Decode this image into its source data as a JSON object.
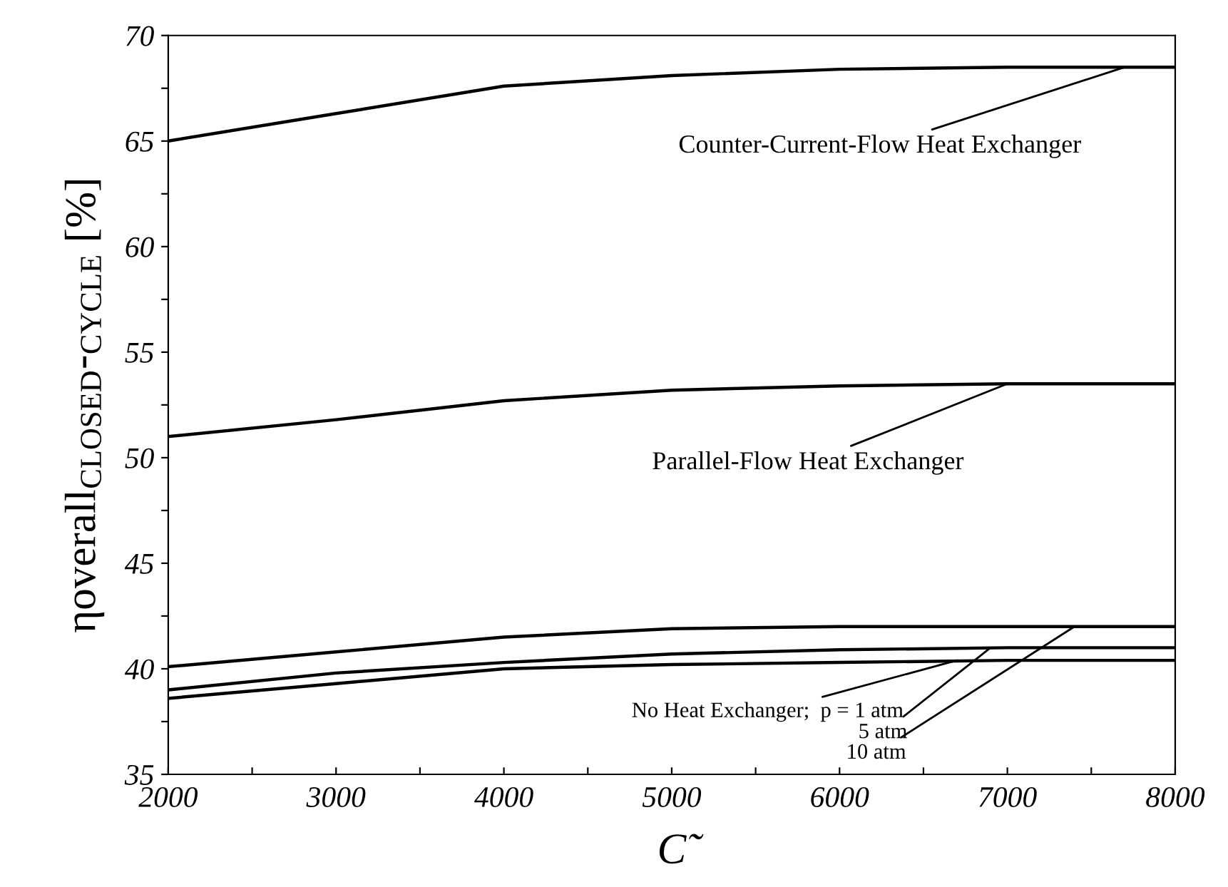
{
  "chart_data": {
    "type": "line",
    "xlabel": "C̃",
    "ylabel": "ηoverall$_{CLOSED}$-$_{CYCLE}$ [%]",
    "x": [
      2000,
      3000,
      4000,
      5000,
      6000,
      7000,
      8000
    ],
    "series": [
      {
        "color": "#000000",
        "values": [
          65.0,
          66.3,
          67.6,
          68.1,
          68.4,
          68.5,
          68.5
        ]
      },
      {
        "color": "#000000",
        "values": [
          51.0,
          51.8,
          52.7,
          53.2,
          53.4,
          53.5,
          53.5
        ]
      },
      {
        "color": "#000000",
        "values": [
          40.1,
          40.8,
          41.5,
          41.9,
          42.0,
          42.0,
          42.0
        ]
      },
      {
        "color": "#000000",
        "values": [
          39.0,
          39.8,
          40.3,
          40.7,
          40.9,
          41.0,
          41.0
        ]
      },
      {
        "color": "#000000",
        "values": [
          38.6,
          39.3,
          40.0,
          40.2,
          40.3,
          40.4,
          40.4
        ]
      }
    ],
    "annotations": [
      {
        "text": "Counter-Current-Flow Heat Exchanger",
        "x": 7700,
        "y": 68.5
      },
      {
        "text": "Parallel-Flow Heat Exchanger",
        "x": 7000,
        "y": 53.5
      },
      {
        "text": "No Heat Exchanger;  p = 1 atm",
        "x": 6700,
        "y": 40.4
      },
      {
        "text": "5 atm",
        "x": 6900,
        "y": 41.0
      },
      {
        "text": "10 atm",
        "x": 7400,
        "y": 42.0
      }
    ],
    "xlim": [
      2000,
      8000
    ],
    "ylim": [
      35,
      70
    ],
    "xticks": [
      2000,
      {
        "value": 2500,
        "label": null
      },
      3000,
      {
        "value": 3500,
        "label": null
      },
      4000,
      {
        "value": 4500,
        "label": null
      },
      5000,
      {
        "value": 5500,
        "label": null
      },
      6000,
      {
        "value": 6500,
        "label": null
      },
      7000,
      {
        "value": 7500,
        "label": null
      },
      8000
    ],
    "yticks": [
      35,
      {
        "value": 37.5,
        "label": null
      },
      40,
      {
        "value": 42.5,
        "label": null
      },
      45,
      {
        "value": 47.5,
        "label": null
      },
      50,
      {
        "value": 52.5,
        "label": null
      },
      55,
      {
        "value": 57.5,
        "label": null
      },
      60,
      {
        "value": 62.5,
        "label": null
      },
      65,
      {
        "value": 67.5,
        "label": null
      },
      70
    ],
    "grid": false,
    "legend": false,
    "marker": "none",
    "line_style": "solid"
  }
}
